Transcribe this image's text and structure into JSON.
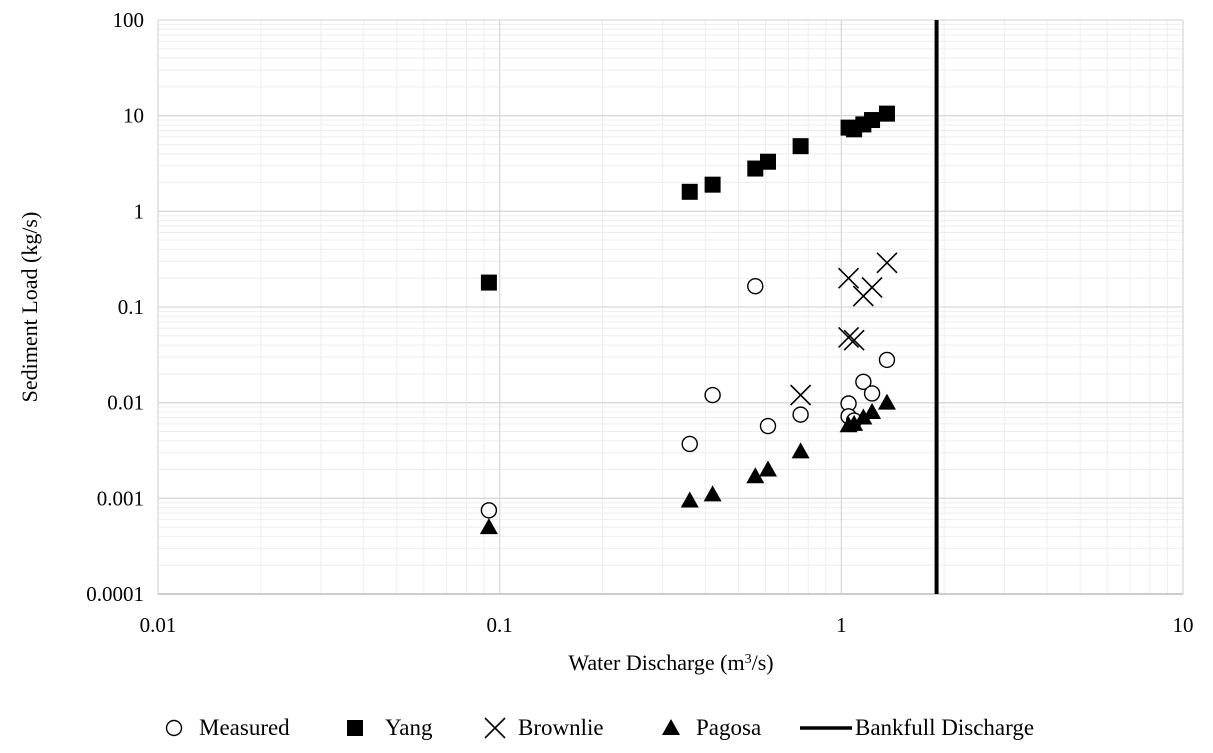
{
  "chart_data": {
    "type": "scatter",
    "title": "",
    "xlabel": "Water Discharge (m³/s)",
    "xlabel_parts": {
      "before": "Water Discharge (m",
      "sup": "3",
      "after": "/s)"
    },
    "ylabel": "Sediment Load (kg/s)",
    "x_scale": "log",
    "y_scale": "log",
    "xlim": [
      0.01,
      10
    ],
    "ylim": [
      0.0001,
      100
    ],
    "x_ticks": [
      0.01,
      0.1,
      1,
      10
    ],
    "x_tick_labels": [
      "0.01",
      "0.1",
      "1",
      "10"
    ],
    "y_ticks": [
      0.0001,
      0.001,
      0.01,
      0.1,
      1,
      10,
      100
    ],
    "y_tick_labels": [
      "0.0001",
      "0.001",
      "0.01",
      "0.1",
      "1",
      "10",
      "100"
    ],
    "grid": true,
    "legend_position": "bottom",
    "series": [
      {
        "name": "Measured",
        "marker": "open-circle",
        "points": [
          [
            0.093,
            0.00075
          ],
          [
            0.36,
            0.0037
          ],
          [
            0.42,
            0.012
          ],
          [
            0.56,
            0.165
          ],
          [
            0.61,
            0.0057
          ],
          [
            0.76,
            0.0075
          ],
          [
            1.05,
            0.0098
          ],
          [
            1.05,
            0.0072
          ],
          [
            1.09,
            0.0065
          ],
          [
            1.16,
            0.0165
          ],
          [
            1.23,
            0.0125
          ],
          [
            1.36,
            0.028
          ]
        ]
      },
      {
        "name": "Yang",
        "marker": "filled-square",
        "points": [
          [
            0.093,
            0.18
          ],
          [
            0.36,
            1.6
          ],
          [
            0.42,
            1.9
          ],
          [
            0.56,
            2.8
          ],
          [
            0.61,
            3.3
          ],
          [
            0.76,
            4.8
          ],
          [
            1.05,
            7.5
          ],
          [
            1.09,
            7.2
          ],
          [
            1.16,
            8.1
          ],
          [
            1.23,
            9.0
          ],
          [
            1.36,
            10.5
          ]
        ]
      },
      {
        "name": "Brownlie",
        "marker": "x",
        "points": [
          [
            0.76,
            0.012
          ],
          [
            1.05,
            0.2
          ],
          [
            1.05,
            0.048
          ],
          [
            1.09,
            0.045
          ],
          [
            1.16,
            0.13
          ],
          [
            1.23,
            0.16
          ],
          [
            1.36,
            0.29
          ]
        ]
      },
      {
        "name": "Pagosa",
        "marker": "filled-triangle",
        "points": [
          [
            0.093,
            0.0005
          ],
          [
            0.36,
            0.00095
          ],
          [
            0.42,
            0.0011
          ],
          [
            0.56,
            0.0017
          ],
          [
            0.61,
            0.002
          ],
          [
            0.76,
            0.0031
          ],
          [
            1.05,
            0.0058
          ],
          [
            1.09,
            0.006
          ],
          [
            1.16,
            0.007
          ],
          [
            1.23,
            0.008
          ],
          [
            1.36,
            0.01
          ]
        ]
      }
    ],
    "reference_lines": [
      {
        "name": "Bankfull Discharge",
        "orientation": "vertical",
        "x": 1.9
      }
    ],
    "colors": {
      "marker": "#000000",
      "grid": "#d9d9d9",
      "minor_grid": "#eeeeee",
      "axis": "#bfbfbf"
    }
  }
}
